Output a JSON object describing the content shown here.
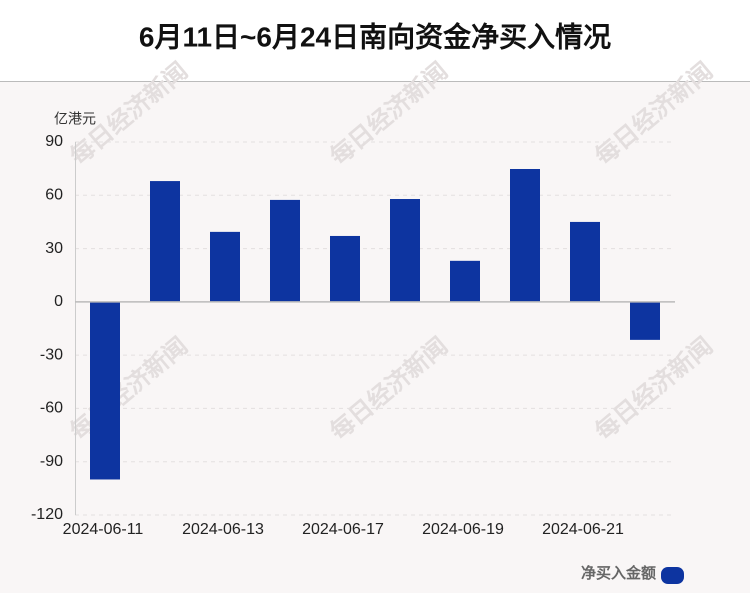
{
  "chart_data": {
    "type": "bar",
    "title": "6月11日~6月24日南向资金净买入情况",
    "y_label": "亿港元",
    "watermark": "每日经济新闻",
    "categories": [
      "2024-06-11",
      null,
      "2024-06-13",
      null,
      "2024-06-17",
      null,
      "2024-06-19",
      null,
      "2024-06-21",
      null
    ],
    "series": [
      {
        "name": "净买入金额",
        "color": "#0d34a0",
        "values": [
          -100,
          68,
          39.4,
          57.4,
          37.1,
          57.9,
          23.1,
          74.8,
          45,
          -21.4
        ]
      }
    ],
    "ylim": [
      -120,
      90
    ],
    "yticks": [
      -120,
      -90,
      -60,
      -30,
      0,
      30,
      60,
      90
    ],
    "grid": true,
    "legend": "bottom-right"
  }
}
